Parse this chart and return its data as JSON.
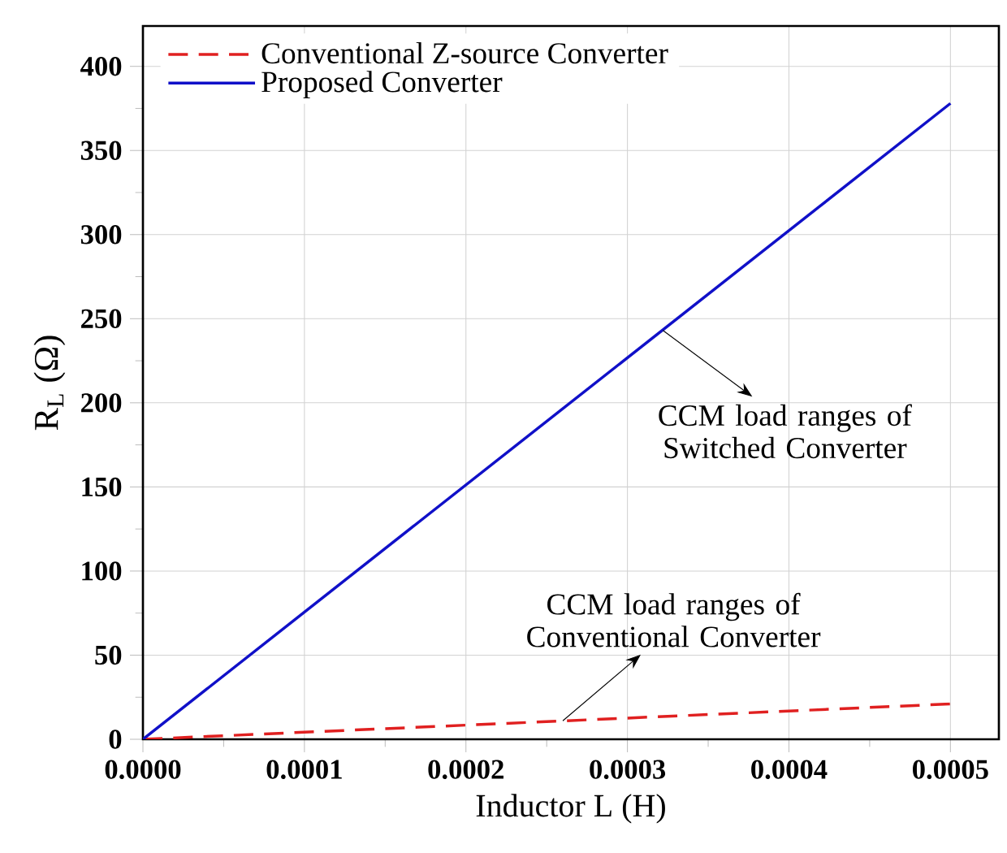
{
  "chart_data": {
    "type": "line",
    "xlabel": "Inductor L (H)",
    "ylabel": "R$_{L}$ (Ω)",
    "xlim": [
      0,
      0.00053
    ],
    "ylim": [
      0,
      424
    ],
    "xticks": [
      {
        "value": 0,
        "label": "0.0000"
      },
      {
        "value": 0.0001,
        "label": "0.0001"
      },
      {
        "value": 0.0002,
        "label": "0.0002"
      },
      {
        "value": 0.0003,
        "label": "0.0003"
      },
      {
        "value": 0.0004,
        "label": "0.0004"
      },
      {
        "value": 0.0005,
        "label": "0.0005"
      }
    ],
    "yticks": [
      0,
      50,
      100,
      150,
      200,
      250,
      300,
      350,
      400
    ],
    "grid": true,
    "legend": "top left",
    "x": [
      0,
      0.0005
    ],
    "series": [
      {
        "name": "Conventional Z-source Converter",
        "color": "#e02020",
        "line_style": "dashed",
        "values": [
          0,
          21
        ]
      },
      {
        "name": "Proposed Converter",
        "color": "#1010c8",
        "line_style": "solid",
        "values": [
          0,
          378
        ]
      }
    ],
    "annotations": [
      {
        "text": "CCM load ranges of\nSwitched Converter",
        "x": 0.000322,
        "y": 243
      },
      {
        "text": "CCM load ranges of\nConventional Converter",
        "x": 0.00026,
        "y": 11
      }
    ]
  }
}
